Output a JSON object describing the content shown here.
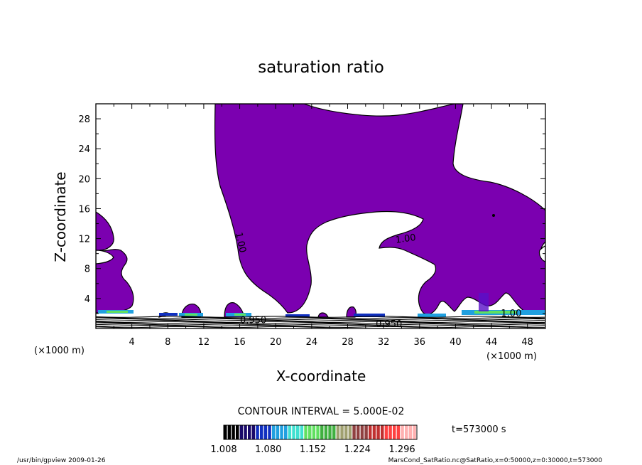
{
  "chart_data": {
    "type": "heatmap",
    "title": "saturation ratio",
    "xlabel": "X-coordinate",
    "ylabel": "Z-coordinate",
    "x_unit": "(×1000 m)",
    "z_unit": "(×1000 m)",
    "xlim": [
      0,
      50
    ],
    "ylim": [
      0,
      30
    ],
    "x_ticks": [
      4,
      8,
      12,
      16,
      20,
      24,
      28,
      32,
      36,
      40,
      44,
      48
    ],
    "y_ticks": [
      4,
      8,
      12,
      16,
      20,
      24,
      28
    ],
    "contour_interval_text": "CONTOUR INTERVAL = 5.000E-02",
    "time_text": "t=573000 s",
    "contour_labels": [
      {
        "text": "1.00",
        "x": 15.8,
        "z": 11.4,
        "angle": 78
      },
      {
        "text": "1.00",
        "x": 34.5,
        "z": 11.6,
        "angle": -8
      },
      {
        "text": "1.00",
        "x": 46.2,
        "z": 1.6,
        "angle": 0
      },
      {
        "text": "0.950",
        "x": 17.5,
        "z": 0.7,
        "angle": 0
      },
      {
        "text": "0.950",
        "x": 32.6,
        "z": 0.2,
        "angle": 0
      }
    ],
    "colorbar": {
      "tick_labels": [
        "1.008",
        "1.080",
        "1.152",
        "1.224",
        "1.296"
      ],
      "min": 1.008,
      "max": 1.32,
      "colors": [
        "#000000",
        "#1a0a6a",
        "#1030c0",
        "#20a0e0",
        "#40e0d0",
        "#60e060",
        "#40b040",
        "#a0a070",
        "#904040",
        "#c03030",
        "#ff4040",
        "#ffb0b0"
      ]
    },
    "colors": {
      "fill": "#7b00b0",
      "background": "#ffffff",
      "line": "#000000"
    }
  },
  "footer": {
    "left": "/usr/bin/gpview  2009-01-26",
    "right": "MarsCond_SatRatio.nc@SatRatio,x=0:50000,z=0:30000,t=573000"
  }
}
